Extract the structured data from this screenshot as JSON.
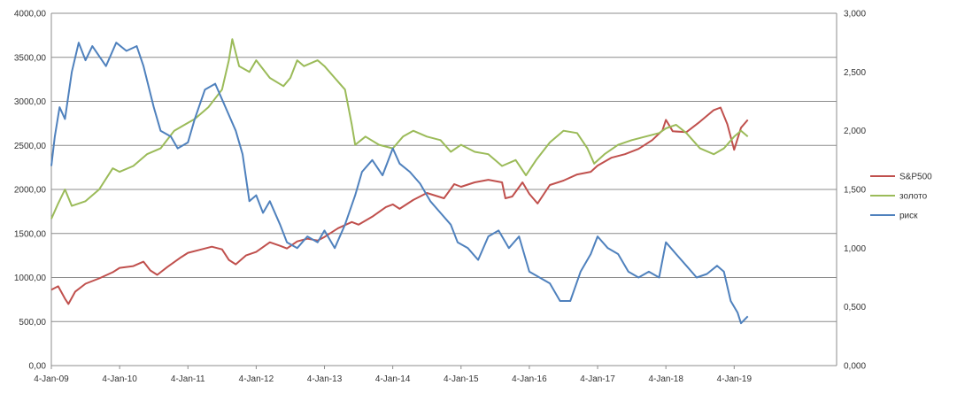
{
  "chart_data": {
    "type": "line",
    "x_ticks": [
      "4-Jan-09",
      "4-Jan-10",
      "4-Jan-11",
      "4-Jan-12",
      "4-Jan-13",
      "4-Jan-14",
      "4-Jan-15",
      "4-Jan-16",
      "4-Jan-17",
      "4-Jan-18",
      "4-Jan-19"
    ],
    "x_range": [
      2009.0,
      2020.5
    ],
    "y_left": {
      "range": [
        0,
        4000
      ],
      "tick_labels": [
        "0,00",
        "500,00",
        "1000,00",
        "1500,00",
        "2000,00",
        "2500,00",
        "3000,00",
        "3500,00",
        "4000,00"
      ]
    },
    "y_right": {
      "range": [
        0,
        3
      ],
      "tick_labels": [
        "0,000",
        "0,500",
        "1,000",
        "1,500",
        "2,000",
        "2,500",
        "3,000"
      ]
    },
    "grid": true,
    "legend_position": "right",
    "series": [
      {
        "name": "S&P500",
        "color": "#c0504d",
        "axis": "left",
        "points": [
          [
            2009.0,
            860
          ],
          [
            2009.1,
            900
          ],
          [
            2009.2,
            760
          ],
          [
            2009.25,
            700
          ],
          [
            2009.35,
            840
          ],
          [
            2009.5,
            930
          ],
          [
            2009.7,
            990
          ],
          [
            2009.9,
            1060
          ],
          [
            2010.0,
            1110
          ],
          [
            2010.2,
            1130
          ],
          [
            2010.35,
            1180
          ],
          [
            2010.45,
            1080
          ],
          [
            2010.55,
            1030
          ],
          [
            2010.7,
            1120
          ],
          [
            2010.9,
            1230
          ],
          [
            2011.0,
            1280
          ],
          [
            2011.2,
            1320
          ],
          [
            2011.35,
            1350
          ],
          [
            2011.5,
            1320
          ],
          [
            2011.6,
            1200
          ],
          [
            2011.7,
            1150
          ],
          [
            2011.85,
            1250
          ],
          [
            2012.0,
            1290
          ],
          [
            2012.2,
            1400
          ],
          [
            2012.35,
            1360
          ],
          [
            2012.45,
            1330
          ],
          [
            2012.6,
            1410
          ],
          [
            2012.75,
            1440
          ],
          [
            2012.9,
            1420
          ],
          [
            2013.0,
            1460
          ],
          [
            2013.2,
            1560
          ],
          [
            2013.4,
            1630
          ],
          [
            2013.5,
            1600
          ],
          [
            2013.7,
            1690
          ],
          [
            2013.9,
            1800
          ],
          [
            2014.0,
            1830
          ],
          [
            2014.1,
            1780
          ],
          [
            2014.3,
            1880
          ],
          [
            2014.5,
            1960
          ],
          [
            2014.75,
            1900
          ],
          [
            2014.9,
            2060
          ],
          [
            2015.0,
            2030
          ],
          [
            2015.2,
            2080
          ],
          [
            2015.4,
            2110
          ],
          [
            2015.6,
            2080
          ],
          [
            2015.65,
            1900
          ],
          [
            2015.75,
            1920
          ],
          [
            2015.9,
            2080
          ],
          [
            2016.0,
            1950
          ],
          [
            2016.12,
            1840
          ],
          [
            2016.3,
            2050
          ],
          [
            2016.5,
            2100
          ],
          [
            2016.7,
            2170
          ],
          [
            2016.9,
            2200
          ],
          [
            2017.0,
            2270
          ],
          [
            2017.2,
            2360
          ],
          [
            2017.4,
            2400
          ],
          [
            2017.6,
            2460
          ],
          [
            2017.8,
            2560
          ],
          [
            2017.95,
            2670
          ],
          [
            2018.0,
            2790
          ],
          [
            2018.1,
            2660
          ],
          [
            2018.3,
            2650
          ],
          [
            2018.5,
            2770
          ],
          [
            2018.7,
            2900
          ],
          [
            2018.8,
            2930
          ],
          [
            2018.9,
            2740
          ],
          [
            2019.0,
            2450
          ],
          [
            2019.1,
            2700
          ],
          [
            2019.2,
            2790
          ]
        ]
      },
      {
        "name": "золото",
        "color": "#9bbb59",
        "axis": "right",
        "points": [
          [
            2009.0,
            1.25
          ],
          [
            2009.1,
            1.38
          ],
          [
            2009.2,
            1.5
          ],
          [
            2009.3,
            1.36
          ],
          [
            2009.5,
            1.4
          ],
          [
            2009.7,
            1.5
          ],
          [
            2009.9,
            1.68
          ],
          [
            2010.0,
            1.65
          ],
          [
            2010.2,
            1.7
          ],
          [
            2010.4,
            1.8
          ],
          [
            2010.6,
            1.85
          ],
          [
            2010.8,
            2.0
          ],
          [
            2010.95,
            2.05
          ],
          [
            2011.1,
            2.1
          ],
          [
            2011.3,
            2.2
          ],
          [
            2011.5,
            2.35
          ],
          [
            2011.6,
            2.6
          ],
          [
            2011.65,
            2.78
          ],
          [
            2011.75,
            2.55
          ],
          [
            2011.9,
            2.5
          ],
          [
            2012.0,
            2.6
          ],
          [
            2012.2,
            2.45
          ],
          [
            2012.4,
            2.38
          ],
          [
            2012.5,
            2.45
          ],
          [
            2012.6,
            2.6
          ],
          [
            2012.7,
            2.55
          ],
          [
            2012.9,
            2.6
          ],
          [
            2013.0,
            2.55
          ],
          [
            2013.15,
            2.45
          ],
          [
            2013.3,
            2.35
          ],
          [
            2013.4,
            2.05
          ],
          [
            2013.45,
            1.88
          ],
          [
            2013.6,
            1.95
          ],
          [
            2013.8,
            1.88
          ],
          [
            2014.0,
            1.85
          ],
          [
            2014.15,
            1.95
          ],
          [
            2014.3,
            2.0
          ],
          [
            2014.5,
            1.95
          ],
          [
            2014.7,
            1.92
          ],
          [
            2014.85,
            1.82
          ],
          [
            2015.0,
            1.88
          ],
          [
            2015.2,
            1.82
          ],
          [
            2015.4,
            1.8
          ],
          [
            2015.6,
            1.7
          ],
          [
            2015.8,
            1.75
          ],
          [
            2015.95,
            1.62
          ],
          [
            2016.1,
            1.75
          ],
          [
            2016.3,
            1.9
          ],
          [
            2016.5,
            2.0
          ],
          [
            2016.7,
            1.98
          ],
          [
            2016.85,
            1.85
          ],
          [
            2016.95,
            1.72
          ],
          [
            2017.1,
            1.8
          ],
          [
            2017.3,
            1.88
          ],
          [
            2017.5,
            1.92
          ],
          [
            2017.7,
            1.95
          ],
          [
            2017.9,
            1.98
          ],
          [
            2018.0,
            2.02
          ],
          [
            2018.15,
            2.05
          ],
          [
            2018.3,
            1.98
          ],
          [
            2018.5,
            1.85
          ],
          [
            2018.7,
            1.8
          ],
          [
            2018.85,
            1.85
          ],
          [
            2019.0,
            1.95
          ],
          [
            2019.1,
            2.0
          ],
          [
            2019.2,
            1.95
          ]
        ]
      },
      {
        "name": "риск",
        "color": "#4f81bd",
        "axis": "right",
        "points": [
          [
            2009.0,
            1.7
          ],
          [
            2009.05,
            1.95
          ],
          [
            2009.12,
            2.2
          ],
          [
            2009.2,
            2.1
          ],
          [
            2009.3,
            2.5
          ],
          [
            2009.4,
            2.75
          ],
          [
            2009.5,
            2.6
          ],
          [
            2009.6,
            2.72
          ],
          [
            2009.8,
            2.55
          ],
          [
            2009.95,
            2.75
          ],
          [
            2010.1,
            2.68
          ],
          [
            2010.25,
            2.72
          ],
          [
            2010.35,
            2.55
          ],
          [
            2010.5,
            2.2
          ],
          [
            2010.6,
            2.0
          ],
          [
            2010.75,
            1.95
          ],
          [
            2010.85,
            1.85
          ],
          [
            2011.0,
            1.9
          ],
          [
            2011.1,
            2.1
          ],
          [
            2011.25,
            2.35
          ],
          [
            2011.4,
            2.4
          ],
          [
            2011.55,
            2.2
          ],
          [
            2011.7,
            2.0
          ],
          [
            2011.8,
            1.8
          ],
          [
            2011.9,
            1.4
          ],
          [
            2012.0,
            1.45
          ],
          [
            2012.1,
            1.3
          ],
          [
            2012.2,
            1.4
          ],
          [
            2012.35,
            1.2
          ],
          [
            2012.45,
            1.05
          ],
          [
            2012.6,
            1.0
          ],
          [
            2012.75,
            1.1
          ],
          [
            2012.9,
            1.05
          ],
          [
            2013.0,
            1.15
          ],
          [
            2013.15,
            1.0
          ],
          [
            2013.3,
            1.2
          ],
          [
            2013.45,
            1.45
          ],
          [
            2013.55,
            1.65
          ],
          [
            2013.7,
            1.75
          ],
          [
            2013.85,
            1.62
          ],
          [
            2014.0,
            1.85
          ],
          [
            2014.1,
            1.72
          ],
          [
            2014.25,
            1.65
          ],
          [
            2014.4,
            1.55
          ],
          [
            2014.55,
            1.4
          ],
          [
            2014.7,
            1.3
          ],
          [
            2014.85,
            1.2
          ],
          [
            2014.95,
            1.05
          ],
          [
            2015.1,
            1.0
          ],
          [
            2015.25,
            0.9
          ],
          [
            2015.4,
            1.1
          ],
          [
            2015.55,
            1.15
          ],
          [
            2015.7,
            1.0
          ],
          [
            2015.85,
            1.1
          ],
          [
            2016.0,
            0.8
          ],
          [
            2016.15,
            0.75
          ],
          [
            2016.3,
            0.7
          ],
          [
            2016.45,
            0.55
          ],
          [
            2016.6,
            0.55
          ],
          [
            2016.75,
            0.8
          ],
          [
            2016.9,
            0.95
          ],
          [
            2017.0,
            1.1
          ],
          [
            2017.15,
            1.0
          ],
          [
            2017.3,
            0.95
          ],
          [
            2017.45,
            0.8
          ],
          [
            2017.6,
            0.75
          ],
          [
            2017.75,
            0.8
          ],
          [
            2017.9,
            0.75
          ],
          [
            2018.0,
            1.05
          ],
          [
            2018.15,
            0.95
          ],
          [
            2018.3,
            0.85
          ],
          [
            2018.45,
            0.75
          ],
          [
            2018.6,
            0.78
          ],
          [
            2018.75,
            0.85
          ],
          [
            2018.85,
            0.8
          ],
          [
            2018.95,
            0.55
          ],
          [
            2019.05,
            0.45
          ],
          [
            2019.1,
            0.36
          ],
          [
            2019.2,
            0.42
          ]
        ]
      }
    ]
  }
}
